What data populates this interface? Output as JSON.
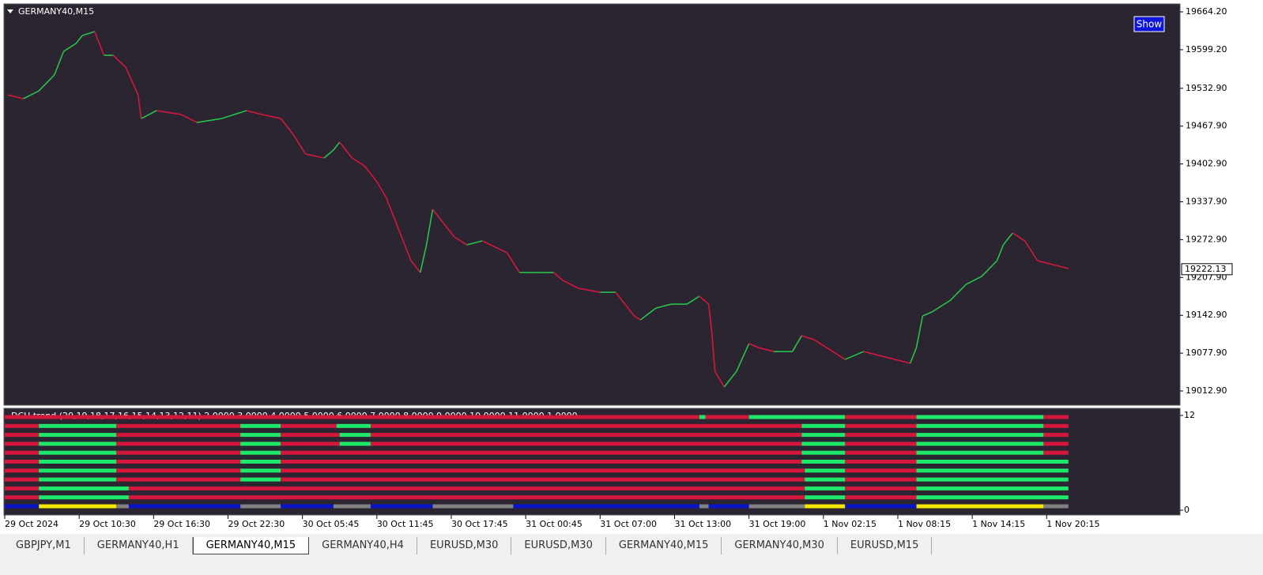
{
  "window": {
    "symbol_label": "GERMANY40,M15",
    "show_button": "Show"
  },
  "chart_data": {
    "type": "line",
    "x": [
      1,
      6,
      11,
      16,
      19,
      23,
      25,
      29,
      32,
      35,
      39,
      43,
      44,
      49,
      57,
      62,
      70,
      78,
      83,
      89,
      93,
      97,
      103,
      106,
      108,
      112,
      116,
      120,
      123,
      126,
      129,
      131,
      134,
      136,
      138,
      141,
      145,
      149,
      154,
      162,
      166,
      172,
      177,
      180,
      185,
      192,
      197,
      200,
      203,
      205,
      210,
      215,
      220,
      224,
      227,
      228,
      229,
      232,
      236,
      240,
      243,
      248,
      254,
      257,
      261,
      265,
      271,
      277,
      282,
      287,
      292,
      294,
      296,
      299,
      305,
      310,
      315,
      320,
      322,
      325,
      329,
      333,
      338,
      343
    ],
    "values": [
      19521.7,
      19515.0,
      19528.5,
      19555.7,
      19596.4,
      19609.9,
      19623.5,
      19630.3,
      19589.6,
      19589.6,
      19569.2,
      19521.7,
      19481.0,
      19494.6,
      19487.8,
      19474.2,
      19481.0,
      19494.6,
      19487.8,
      19481.0,
      19453.9,
      19420.0,
      19413.2,
      19426.8,
      19440.3,
      19413.2,
      19399.6,
      19372.5,
      19345.3,
      19304.6,
      19263.9,
      19236.8,
      19216.4,
      19263.9,
      19325.0,
      19304.6,
      19277.5,
      19263.9,
      19270.7,
      19250.3,
      19216.4,
      19216.4,
      19216.4,
      19202.8,
      19189.3,
      19182.5,
      19182.5,
      19162.1,
      19141.8,
      19135.0,
      19155.4,
      19162.1,
      19162.1,
      19175.7,
      19162.1,
      19114.6,
      19046.8,
      19019.7,
      19046.8,
      19094.3,
      19087.5,
      19080.7,
      19080.7,
      19107.9,
      19101.1,
      19087.5,
      19067.1,
      19080.7,
      19073.9,
      19067.1,
      19060.4,
      19087.5,
      19141.8,
      19148.6,
      19168.9,
      19196.1,
      19209.6,
      19236.8,
      19263.9,
      19284.3,
      19270.7,
      19236.8,
      19230.0,
      19223.2
    ],
    "up_color": "#28c24c",
    "down_color": "#d5173d",
    "xlim": [
      0,
      379
    ],
    "ylim": [
      18988.5,
      19677.8
    ],
    "yticks": [
      {
        "value": 19664.2,
        "label": "19664.20"
      },
      {
        "value": 19599.2,
        "label": "19599.20"
      },
      {
        "value": 19532.9,
        "label": "19532.90"
      },
      {
        "value": 19467.9,
        "label": "19467.90"
      },
      {
        "value": 19402.9,
        "label": "19402.90"
      },
      {
        "value": 19337.9,
        "label": "19337.90"
      },
      {
        "value": 19272.9,
        "label": "19272.90"
      },
      {
        "value": 19207.9,
        "label": "19207.90"
      },
      {
        "value": 19142.9,
        "label": "19142.90"
      },
      {
        "value": 19077.9,
        "label": "19077.90"
      },
      {
        "value": 19012.9,
        "label": "19012.90"
      }
    ],
    "xticks": [
      {
        "value": 0,
        "label": "29 Oct 2024"
      },
      {
        "value": 24,
        "label": "29 Oct 10:30"
      },
      {
        "value": 48,
        "label": "29 Oct 16:30"
      },
      {
        "value": 72,
        "label": "29 Oct 22:30"
      },
      {
        "value": 96,
        "label": "30 Oct 05:45"
      },
      {
        "value": 120,
        "label": "30 Oct 11:45"
      },
      {
        "value": 144,
        "label": "30 Oct 17:45"
      },
      {
        "value": 168,
        "label": "31 Oct 00:45"
      },
      {
        "value": 192,
        "label": "31 Oct 07:00"
      },
      {
        "value": 216,
        "label": "31 Oct 13:00"
      },
      {
        "value": 240,
        "label": "31 Oct 19:00"
      },
      {
        "value": 264,
        "label": "1 Nov 02:15"
      },
      {
        "value": 288,
        "label": "1 Nov 08:15"
      },
      {
        "value": 312,
        "label": "1 Nov 14:15"
      },
      {
        "value": 336,
        "label": "1 Nov 20:15"
      }
    ],
    "current_price": {
      "value": 19222.13,
      "label": "19222.13"
    }
  },
  "indicator": {
    "label": "DCH trend (20,19,18,17,16,15,14,13,12,11) 2.0000 3.0000 4.0000 5.0000 6.0000 7.0000 8.0000 9.0000 10.0000 11.0000 1.0000",
    "ylim": [
      0,
      12
    ],
    "yticks": [
      0,
      12
    ],
    "rows": [
      [
        [
          0,
          224,
          "#d5173d"
        ],
        [
          224,
          226,
          "#1ee86a"
        ],
        [
          226,
          240,
          "#d5173d"
        ],
        [
          240,
          271,
          "#1ee86a"
        ],
        [
          271,
          294,
          "#d5173d"
        ],
        [
          294,
          335,
          "#1ee86a"
        ],
        [
          335,
          343,
          "#d5173d"
        ]
      ],
      [
        [
          0,
          11,
          "#d5173d"
        ],
        [
          11,
          36,
          "#1ee86a"
        ],
        [
          36,
          76,
          "#d5173d"
        ],
        [
          76,
          89,
          "#1ee86a"
        ],
        [
          89,
          107,
          "#d5173d"
        ],
        [
          107,
          118,
          "#1ee86a"
        ],
        [
          118,
          257,
          "#d5173d"
        ],
        [
          257,
          271,
          "#1ee86a"
        ],
        [
          271,
          294,
          "#d5173d"
        ],
        [
          294,
          335,
          "#1ee86a"
        ],
        [
          335,
          343,
          "#d5173d"
        ]
      ],
      [
        [
          0,
          11,
          "#d5173d"
        ],
        [
          11,
          36,
          "#1ee86a"
        ],
        [
          36,
          76,
          "#d5173d"
        ],
        [
          76,
          89,
          "#1ee86a"
        ],
        [
          89,
          108,
          "#d5173d"
        ],
        [
          108,
          118,
          "#1ee86a"
        ],
        [
          118,
          257,
          "#d5173d"
        ],
        [
          257,
          271,
          "#1ee86a"
        ],
        [
          271,
          294,
          "#d5173d"
        ],
        [
          294,
          335,
          "#1ee86a"
        ],
        [
          335,
          343,
          "#d5173d"
        ]
      ],
      [
        [
          0,
          11,
          "#d5173d"
        ],
        [
          11,
          36,
          "#1ee86a"
        ],
        [
          36,
          76,
          "#d5173d"
        ],
        [
          76,
          89,
          "#1ee86a"
        ],
        [
          89,
          108,
          "#d5173d"
        ],
        [
          108,
          118,
          "#1ee86a"
        ],
        [
          118,
          257,
          "#d5173d"
        ],
        [
          257,
          271,
          "#1ee86a"
        ],
        [
          271,
          294,
          "#d5173d"
        ],
        [
          294,
          335,
          "#1ee86a"
        ],
        [
          335,
          343,
          "#d5173d"
        ]
      ],
      [
        [
          0,
          11,
          "#d5173d"
        ],
        [
          11,
          36,
          "#1ee86a"
        ],
        [
          36,
          76,
          "#d5173d"
        ],
        [
          76,
          89,
          "#1ee86a"
        ],
        [
          89,
          257,
          "#d5173d"
        ],
        [
          257,
          271,
          "#1ee86a"
        ],
        [
          271,
          294,
          "#d5173d"
        ],
        [
          294,
          335,
          "#1ee86a"
        ],
        [
          335,
          343,
          "#d5173d"
        ]
      ],
      [
        [
          0,
          11,
          "#d5173d"
        ],
        [
          11,
          36,
          "#1ee86a"
        ],
        [
          36,
          76,
          "#d5173d"
        ],
        [
          76,
          89,
          "#1ee86a"
        ],
        [
          89,
          257,
          "#d5173d"
        ],
        [
          257,
          271,
          "#1ee86a"
        ],
        [
          271,
          294,
          "#d5173d"
        ],
        [
          294,
          343,
          "#1ee86a"
        ]
      ],
      [
        [
          0,
          11,
          "#d5173d"
        ],
        [
          11,
          36,
          "#1ee86a"
        ],
        [
          36,
          76,
          "#d5173d"
        ],
        [
          76,
          89,
          "#1ee86a"
        ],
        [
          89,
          258,
          "#d5173d"
        ],
        [
          258,
          271,
          "#1ee86a"
        ],
        [
          271,
          294,
          "#d5173d"
        ],
        [
          294,
          343,
          "#1ee86a"
        ]
      ],
      [
        [
          0,
          11,
          "#d5173d"
        ],
        [
          11,
          36,
          "#1ee86a"
        ],
        [
          36,
          76,
          "#d5173d"
        ],
        [
          76,
          89,
          "#1ee86a"
        ],
        [
          89,
          258,
          "#d5173d"
        ],
        [
          258,
          271,
          "#1ee86a"
        ],
        [
          271,
          294,
          "#d5173d"
        ],
        [
          294,
          343,
          "#1ee86a"
        ]
      ],
      [
        [
          0,
          11,
          "#d5173d"
        ],
        [
          11,
          40,
          "#1ee86a"
        ],
        [
          40,
          258,
          "#d5173d"
        ],
        [
          258,
          271,
          "#1ee86a"
        ],
        [
          271,
          294,
          "#d5173d"
        ],
        [
          294,
          343,
          "#1ee86a"
        ]
      ],
      [
        [
          0,
          11,
          "#d5173d"
        ],
        [
          11,
          40,
          "#1ee86a"
        ],
        [
          40,
          258,
          "#d5173d"
        ],
        [
          258,
          271,
          "#1ee86a"
        ],
        [
          271,
          294,
          "#d5173d"
        ],
        [
          294,
          343,
          "#1ee86a"
        ]
      ],
      [
        [
          0,
          11,
          "#0a14c8"
        ],
        [
          11,
          36,
          "#f5e600"
        ],
        [
          36,
          40,
          "#808080"
        ],
        [
          40,
          76,
          "#0a14c8"
        ],
        [
          76,
          89,
          "#808080"
        ],
        [
          89,
          106,
          "#0a14c8"
        ],
        [
          106,
          118,
          "#808080"
        ],
        [
          118,
          138,
          "#0a14c8"
        ],
        [
          138,
          164,
          "#808080"
        ],
        [
          164,
          224,
          "#0a14c8"
        ],
        [
          224,
          227,
          "#808080"
        ],
        [
          227,
          240,
          "#0a14c8"
        ],
        [
          240,
          258,
          "#808080"
        ],
        [
          258,
          271,
          "#f5e600"
        ],
        [
          271,
          294,
          "#0a14c8"
        ],
        [
          294,
          335,
          "#f5e600"
        ],
        [
          335,
          343,
          "#808080"
        ]
      ]
    ]
  },
  "tabs": [
    "GBPJPY,M1",
    "GERMANY40,H1",
    "GERMANY40,M15",
    "GERMANY40,H4",
    "EURUSD,M30",
    "EURUSD,M30",
    "GERMANY40,M15",
    "GERMANY40,M30",
    "EURUSD,M15"
  ],
  "active_tab": 2
}
